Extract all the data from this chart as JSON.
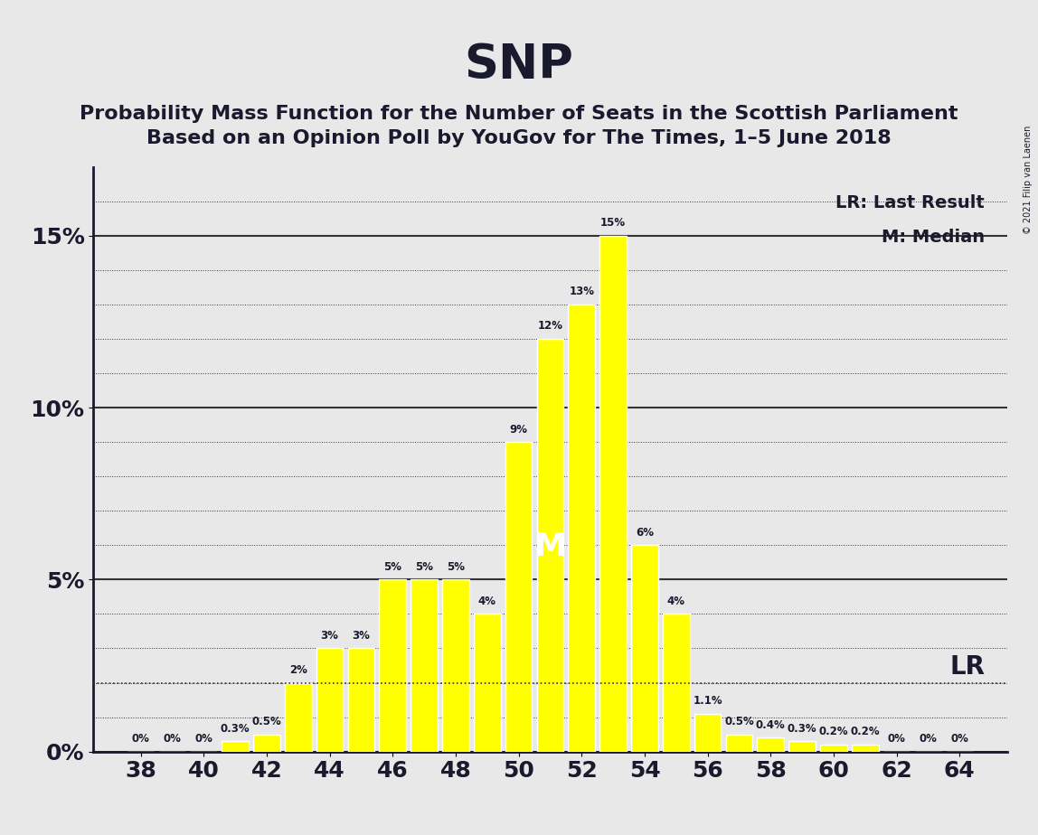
{
  "title": "SNP",
  "subtitle1": "Probability Mass Function for the Number of Seats in the Scottish Parliament",
  "subtitle2": "Based on an Opinion Poll by YouGov for The Times, 1–5 June 2018",
  "copyright": "© 2021 Filip van Laenen",
  "seats": [
    38,
    39,
    40,
    41,
    42,
    43,
    44,
    45,
    46,
    47,
    48,
    49,
    50,
    51,
    52,
    53,
    54,
    55,
    56,
    57,
    58,
    59,
    60,
    61,
    62,
    63,
    64
  ],
  "probabilities": [
    0.0,
    0.0,
    0.0,
    0.003,
    0.005,
    0.02,
    0.03,
    0.03,
    0.05,
    0.05,
    0.05,
    0.04,
    0.09,
    0.12,
    0.13,
    0.15,
    0.06,
    0.04,
    0.011,
    0.005,
    0.004,
    0.003,
    0.002,
    0.002,
    0.0,
    0.0,
    0.0
  ],
  "bar_color": "#FFFF00",
  "bar_edge_color": "#FFFFFF",
  "background_color": "#E8E8E8",
  "text_color": "#1a1a2e",
  "grid_color": "#333333",
  "ylabel_ticks": [
    0,
    0.05,
    0.1,
    0.15
  ],
  "ylabel_labels": [
    "0%",
    "5%",
    "10%",
    "15%"
  ],
  "xlim": [
    36.5,
    65.5
  ],
  "ylim": [
    0,
    0.17
  ],
  "LR_value": 63,
  "median_value": 51,
  "LR_line_y": 0.02,
  "legend_text1": "LR: Last Result",
  "legend_text2": "M: Median"
}
